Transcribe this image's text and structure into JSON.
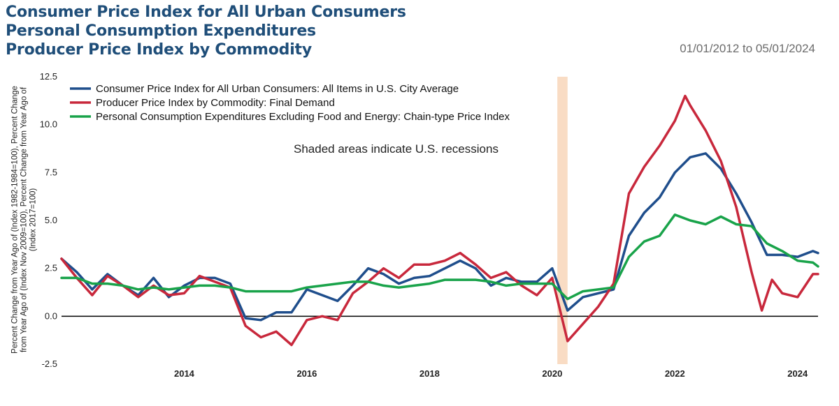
{
  "titles": [
    "Consumer Price Index for All Urban Consumers",
    "Personal Consumption Expenditures",
    "Producer Price Index by Commodity"
  ],
  "date_range": "01/01/2012 to 05/01/2024",
  "chart_data": {
    "type": "line",
    "ylabel": "Percent Change from Year Ago of (Index 1982-1984=100), Percent Change from Year Ago of (Index Nov 2009=100), Percent Change from Year Ago of (Index 2017=100)",
    "xlabel": "",
    "x_start": "2012-01",
    "x_end": "2024-05",
    "ylim": [
      -2.5,
      12.5
    ],
    "yticks": [
      -2.5,
      0.0,
      2.5,
      5.0,
      7.5,
      10.0,
      12.5
    ],
    "ytick_labels": [
      "-2.5",
      "0.0",
      "2.5",
      "5.0",
      "7.5",
      "10.0",
      "12.5"
    ],
    "xticks": [
      2014,
      2016,
      2018,
      2020,
      2022,
      2024
    ],
    "xtick_labels": [
      "2014",
      "2016",
      "2018",
      "2020",
      "2022",
      "2024"
    ],
    "zero_line": true,
    "legend_position": "top-left",
    "annotation": "Shaded areas indicate U.S. recessions",
    "recessions": [
      {
        "start": "2020-02",
        "end": "2020-04",
        "color": "#f9dcc4"
      }
    ],
    "series": [
      {
        "name": "Consumer Price Index for All Urban Consumers: All Items in U.S. City Average",
        "color": "#1f4e8c",
        "points": [
          [
            "2012-01",
            3.0
          ],
          [
            "2012-04",
            2.3
          ],
          [
            "2012-07",
            1.4
          ],
          [
            "2012-10",
            2.2
          ],
          [
            "2013-01",
            1.6
          ],
          [
            "2013-04",
            1.1
          ],
          [
            "2013-07",
            2.0
          ],
          [
            "2013-10",
            1.0
          ],
          [
            "2014-01",
            1.6
          ],
          [
            "2014-04",
            2.0
          ],
          [
            "2014-07",
            2.0
          ],
          [
            "2014-10",
            1.7
          ],
          [
            "2015-01",
            -0.1
          ],
          [
            "2015-04",
            -0.2
          ],
          [
            "2015-07",
            0.2
          ],
          [
            "2015-10",
            0.2
          ],
          [
            "2016-01",
            1.4
          ],
          [
            "2016-04",
            1.1
          ],
          [
            "2016-07",
            0.8
          ],
          [
            "2016-10",
            1.6
          ],
          [
            "2017-01",
            2.5
          ],
          [
            "2017-04",
            2.2
          ],
          [
            "2017-07",
            1.7
          ],
          [
            "2017-10",
            2.0
          ],
          [
            "2018-01",
            2.1
          ],
          [
            "2018-04",
            2.5
          ],
          [
            "2018-07",
            2.9
          ],
          [
            "2018-10",
            2.5
          ],
          [
            "2019-01",
            1.6
          ],
          [
            "2019-04",
            2.0
          ],
          [
            "2019-07",
            1.8
          ],
          [
            "2019-10",
            1.8
          ],
          [
            "2020-01",
            2.5
          ],
          [
            "2020-04",
            0.3
          ],
          [
            "2020-07",
            1.0
          ],
          [
            "2020-10",
            1.2
          ],
          [
            "2021-01",
            1.4
          ],
          [
            "2021-04",
            4.2
          ],
          [
            "2021-07",
            5.4
          ],
          [
            "2021-10",
            6.2
          ],
          [
            "2022-01",
            7.5
          ],
          [
            "2022-04",
            8.3
          ],
          [
            "2022-07",
            8.5
          ],
          [
            "2022-10",
            7.7
          ],
          [
            "2023-01",
            6.4
          ],
          [
            "2023-04",
            4.9
          ],
          [
            "2023-07",
            3.2
          ],
          [
            "2023-10",
            3.2
          ],
          [
            "2024-01",
            3.1
          ],
          [
            "2024-04",
            3.4
          ],
          [
            "2024-05",
            3.3
          ]
        ]
      },
      {
        "name": "Producer Price Index by Commodity: Final Demand",
        "color": "#c8283c",
        "points": [
          [
            "2012-01",
            3.0
          ],
          [
            "2012-04",
            2.0
          ],
          [
            "2012-07",
            1.1
          ],
          [
            "2012-10",
            2.1
          ],
          [
            "2013-01",
            1.6
          ],
          [
            "2013-04",
            1.0
          ],
          [
            "2013-07",
            1.6
          ],
          [
            "2013-10",
            1.1
          ],
          [
            "2014-01",
            1.2
          ],
          [
            "2014-04",
            2.1
          ],
          [
            "2014-07",
            1.8
          ],
          [
            "2014-10",
            1.5
          ],
          [
            "2015-01",
            -0.5
          ],
          [
            "2015-04",
            -1.1
          ],
          [
            "2015-07",
            -0.8
          ],
          [
            "2015-10",
            -1.5
          ],
          [
            "2016-01",
            -0.2
          ],
          [
            "2016-04",
            0.0
          ],
          [
            "2016-07",
            -0.2
          ],
          [
            "2016-10",
            1.2
          ],
          [
            "2017-01",
            1.8
          ],
          [
            "2017-04",
            2.5
          ],
          [
            "2017-07",
            2.0
          ],
          [
            "2017-10",
            2.7
          ],
          [
            "2018-01",
            2.7
          ],
          [
            "2018-04",
            2.9
          ],
          [
            "2018-07",
            3.3
          ],
          [
            "2018-10",
            2.7
          ],
          [
            "2019-01",
            2.0
          ],
          [
            "2019-04",
            2.3
          ],
          [
            "2019-07",
            1.6
          ],
          [
            "2019-10",
            1.1
          ],
          [
            "2020-01",
            2.0
          ],
          [
            "2020-04",
            -1.3
          ],
          [
            "2020-07",
            -0.4
          ],
          [
            "2020-10",
            0.5
          ],
          [
            "2021-01",
            1.7
          ],
          [
            "2021-04",
            6.4
          ],
          [
            "2021-07",
            7.8
          ],
          [
            "2021-10",
            8.9
          ],
          [
            "2022-01",
            10.2
          ],
          [
            "2022-03",
            11.5
          ],
          [
            "2022-04",
            11.0
          ],
          [
            "2022-07",
            9.7
          ],
          [
            "2022-10",
            8.1
          ],
          [
            "2023-01",
            5.7
          ],
          [
            "2023-04",
            2.3
          ],
          [
            "2023-06",
            0.3
          ],
          [
            "2023-08",
            1.9
          ],
          [
            "2023-10",
            1.2
          ],
          [
            "2024-01",
            1.0
          ],
          [
            "2024-04",
            2.2
          ],
          [
            "2024-05",
            2.2
          ]
        ]
      },
      {
        "name": "Personal Consumption Expenditures Excluding Food and Energy: Chain-type Price Index",
        "color": "#19a34a",
        "points": [
          [
            "2012-01",
            2.0
          ],
          [
            "2012-04",
            2.0
          ],
          [
            "2012-07",
            1.7
          ],
          [
            "2012-10",
            1.7
          ],
          [
            "2013-01",
            1.6
          ],
          [
            "2013-04",
            1.4
          ],
          [
            "2013-07",
            1.5
          ],
          [
            "2013-10",
            1.4
          ],
          [
            "2014-01",
            1.5
          ],
          [
            "2014-04",
            1.6
          ],
          [
            "2014-07",
            1.6
          ],
          [
            "2014-10",
            1.5
          ],
          [
            "2015-01",
            1.3
          ],
          [
            "2015-04",
            1.3
          ],
          [
            "2015-07",
            1.3
          ],
          [
            "2015-10",
            1.3
          ],
          [
            "2016-01",
            1.5
          ],
          [
            "2016-04",
            1.6
          ],
          [
            "2016-07",
            1.7
          ],
          [
            "2016-10",
            1.8
          ],
          [
            "2017-01",
            1.8
          ],
          [
            "2017-04",
            1.6
          ],
          [
            "2017-07",
            1.5
          ],
          [
            "2017-10",
            1.6
          ],
          [
            "2018-01",
            1.7
          ],
          [
            "2018-04",
            1.9
          ],
          [
            "2018-07",
            1.9
          ],
          [
            "2018-10",
            1.9
          ],
          [
            "2019-01",
            1.8
          ],
          [
            "2019-04",
            1.6
          ],
          [
            "2019-07",
            1.7
          ],
          [
            "2019-10",
            1.7
          ],
          [
            "2020-01",
            1.7
          ],
          [
            "2020-04",
            0.9
          ],
          [
            "2020-07",
            1.3
          ],
          [
            "2020-10",
            1.4
          ],
          [
            "2021-01",
            1.5
          ],
          [
            "2021-04",
            3.1
          ],
          [
            "2021-07",
            3.9
          ],
          [
            "2021-10",
            4.2
          ],
          [
            "2022-01",
            5.3
          ],
          [
            "2022-04",
            5.0
          ],
          [
            "2022-07",
            4.8
          ],
          [
            "2022-10",
            5.2
          ],
          [
            "2023-01",
            4.8
          ],
          [
            "2023-04",
            4.7
          ],
          [
            "2023-07",
            3.8
          ],
          [
            "2023-10",
            3.4
          ],
          [
            "2024-01",
            2.9
          ],
          [
            "2024-04",
            2.8
          ],
          [
            "2024-05",
            2.6
          ]
        ]
      }
    ]
  }
}
